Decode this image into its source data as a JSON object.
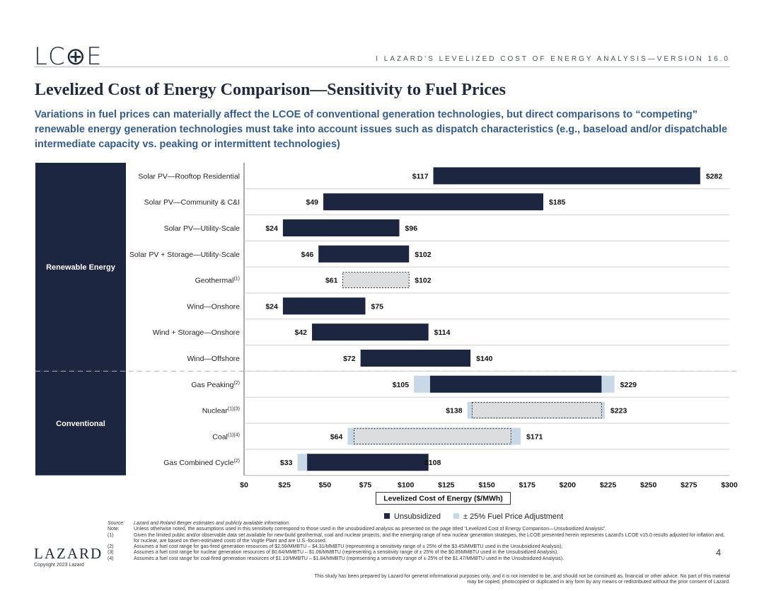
{
  "header": {
    "logo": "LC⊕E",
    "tag": "I   LAZARD'S LEVELIZED COST OF ENERGY ANALYSIS—VERSION 16.0"
  },
  "title": "Levelized Cost of Energy Comparison—Sensitivity to Fuel Prices",
  "subtitle": "Variations in fuel prices can materially affect the LCOE of conventional generation technologies, but direct comparisons to “competing” renewable energy generation technologies must take into account issues such as dispatch characteristics (e.g., baseload and/or dispatchable intermediate capacity vs. peaking or intermittent technologies)",
  "chart_data": {
    "type": "bar",
    "orientation": "horizontal-range",
    "xlabel": "Levelized Cost of Energy ($/MWh)",
    "xlim": [
      0,
      300
    ],
    "xticks": [
      "$0",
      "$25",
      "$50",
      "$75",
      "$100",
      "$125",
      "$150",
      "$175",
      "$200",
      "$225",
      "$250",
      "$275",
      "$300"
    ],
    "grid": false,
    "groups": [
      {
        "name": "Renewable Energy",
        "start": 0,
        "end": 7
      },
      {
        "name": "Conventional",
        "start": 8,
        "end": 11
      }
    ],
    "categories": [
      {
        "label": "Solar PV—Rooftop Residential",
        "sup": "",
        "low": 117,
        "high": 282,
        "low_label": "$117",
        "high_label": "$282",
        "style": "solid"
      },
      {
        "label": "Solar PV—Community & C&I",
        "sup": "",
        "low": 49,
        "high": 185,
        "low_label": "$49",
        "high_label": "$185",
        "style": "solid"
      },
      {
        "label": "Solar PV—Utility-Scale",
        "sup": "",
        "low": 24,
        "high": 96,
        "low_label": "$24",
        "high_label": "$96",
        "style": "solid"
      },
      {
        "label": "Solar PV + Storage—Utility-Scale",
        "sup": "",
        "low": 46,
        "high": 102,
        "low_label": "$46",
        "high_label": "$102",
        "style": "solid"
      },
      {
        "label": "Geothermal",
        "sup": "(1)",
        "low": 61,
        "high": 102,
        "low_label": "$61",
        "high_label": "$102",
        "style": "dashed"
      },
      {
        "label": "Wind—Onshore",
        "sup": "",
        "low": 24,
        "high": 75,
        "low_label": "$24",
        "high_label": "$75",
        "style": "solid"
      },
      {
        "label": "Wind + Storage—Onshore",
        "sup": "",
        "low": 42,
        "high": 114,
        "low_label": "$42",
        "high_label": "$114",
        "style": "solid"
      },
      {
        "label": "Wind—Offshore",
        "sup": "",
        "low": 72,
        "high": 140,
        "low_label": "$72",
        "high_label": "$140",
        "style": "solid"
      },
      {
        "label": "Gas Peaking",
        "sup": "(2)",
        "low": 105,
        "high": 229,
        "low_label": "$105",
        "high_label": "$229",
        "style": "solid",
        "unsub_low": 115,
        "unsub_high": 221
      },
      {
        "label": "Nuclear",
        "sup": "(1)(3)",
        "low": 138,
        "high": 223,
        "low_label": "$138",
        "high_label": "$223",
        "style": "dashed",
        "unsub_low": 141,
        "unsub_high": 221
      },
      {
        "label": "Coal",
        "sup": "(1)(4)",
        "low": 64,
        "high": 171,
        "low_label": "$64",
        "high_label": "$171",
        "style": "dashed",
        "unsub_low": 68,
        "unsub_high": 165
      },
      {
        "label": "Gas Combined Cycle",
        "sup": "(2)",
        "low": 33,
        "high": 108,
        "low_label": "$33",
        "high_label": "$108",
        "style": "solid",
        "unsub_low": 39,
        "unsub_high": 114
      }
    ],
    "legend": [
      {
        "name": "Unsubsidized",
        "color": "#1c2640"
      },
      {
        "name": "± 25% Fuel Price Adjustment",
        "color": "#c9d8e6"
      }
    ],
    "colors": {
      "bar": "#1c2640",
      "fuel_adjust": "#c9d8e6",
      "dashed_fill": "#dadcde",
      "band": "#1c2640"
    }
  },
  "notes": [
    {
      "k": "Source:",
      "v": "Lazard and Roland Berger estimates and publicly available information.",
      "italic": true
    },
    {
      "k": "Note:",
      "v": "Unless otherwise noted, the assumptions used in this sensitivity correspond to those used in the unsubsidized analysis as presented on the page titled “Levelized Cost of Energy Comparison—Unsubsidized Analysis”."
    },
    {
      "k": "(1)",
      "v": "Given the limited public and/or observable data set available for new-build geothermal, coal and nuclear projects, and the emerging range of new nuclear generation strategies, the LCOE presented herein represents Lazard's LCOE v15.0 results adjusted for inflation and, for nuclear, are based on then-estimated costs of the Vogtle Plant and are U.S.-focused."
    },
    {
      "k": "(2)",
      "v": "Assumes a fuel cost range for gas-fired generation resources of $2.59/MMBTU – $4.31/MMBTU (representing a sensitivity range of ± 25% of the $3.45/MMBTU used in the Unsubsidized Analysis)."
    },
    {
      "k": "(3)",
      "v": "Assumes a fuel cost range for nuclear generation resources of $0.64/MMBTU – $1.06/MMBTU (representing a sensitivity range of ± 25% of the $0.85MMBTU used in the Unsubsidized Analysis)."
    },
    {
      "k": "(4)",
      "v": "Assumes a fuel cost range for coal-fired generation resources of $1.10/MMBTU – $1.84/MMBTU (representing a sensitivity range of ± 25% of the $1.47/MMBTU used in the Unsubsidized Analysis)."
    }
  ],
  "footer": {
    "lazard": "LAZARD",
    "copyright": "Copyright 2023 Lazard",
    "page": "4",
    "disclaimer": "This study has been prepared by Lazard for general informational purposes only, and it is not intended to be, and should not be construed as, financial or other advice. No part of this material may be copied, photocopied or duplicated in any form by any means or redistributed without the prior consent of Lazard."
  }
}
